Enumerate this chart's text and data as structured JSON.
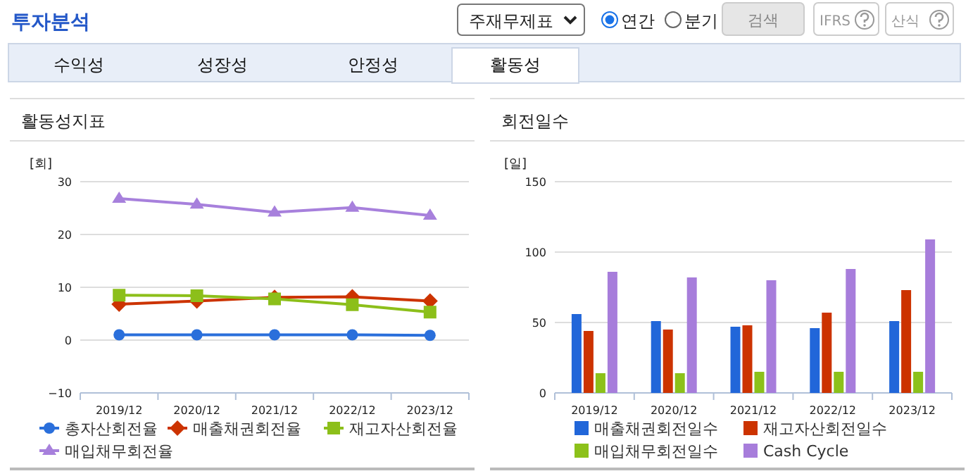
{
  "chart_data": [
    {
      "type": "other",
      "title": "투자분석",
      "annotations": [
        "주재무제표",
        "연간",
        "분기",
        "검색",
        "IFRS",
        "산식",
        "수익성",
        "성장성",
        "안정성",
        "활동성"
      ]
    },
    {
      "type": "line",
      "title": "활동성지표",
      "ylabel": "[회]",
      "categories": [
        "2019/12",
        "2020/12",
        "2021/12",
        "2022/12",
        "2023/12"
      ],
      "ylim": [
        -10,
        30
      ],
      "yticks": [
        -10,
        0,
        10,
        20,
        30
      ],
      "grid": "y",
      "legend": "bottom",
      "series": [
        {
          "name": "총자산회전율",
          "color": "#2a6fdb",
          "marker": "circle",
          "values": [
            1.0,
            1.0,
            1.0,
            1.0,
            0.9
          ]
        },
        {
          "name": "매출채권회전율",
          "color": "#cc3300",
          "marker": "diamond",
          "values": [
            6.8,
            7.4,
            8.1,
            8.2,
            7.4
          ]
        },
        {
          "name": "재고자산회전율",
          "color": "#8cbf1a",
          "marker": "square",
          "values": [
            8.5,
            8.4,
            7.8,
            6.7,
            5.3
          ]
        },
        {
          "name": "매입채무회전율",
          "color": "#a780dc",
          "marker": "triangle",
          "values": [
            26.8,
            25.7,
            24.2,
            25.1,
            23.6
          ]
        }
      ]
    },
    {
      "type": "bar",
      "title": "회전일수",
      "ylabel": "[일]",
      "categories": [
        "2019/12",
        "2020/12",
        "2021/12",
        "2022/12",
        "2023/12"
      ],
      "ylim": [
        0,
        150
      ],
      "yticks": [
        0,
        50,
        100,
        150
      ],
      "grid": "y",
      "legend": "bottom",
      "series": [
        {
          "name": "매출채권회전일수",
          "color": "#2166d9",
          "values": [
            56,
            51,
            47,
            46,
            51
          ]
        },
        {
          "name": "재고자산회전일수",
          "color": "#cc3300",
          "values": [
            44,
            45,
            48,
            57,
            73
          ]
        },
        {
          "name": "매입채무회전일수",
          "color": "#8cc11a",
          "values": [
            14,
            14,
            15,
            15,
            15
          ]
        },
        {
          "name": "Cash Cycle",
          "color": "#a77ddb",
          "values": [
            86,
            82,
            80,
            88,
            109
          ]
        }
      ]
    }
  ]
}
